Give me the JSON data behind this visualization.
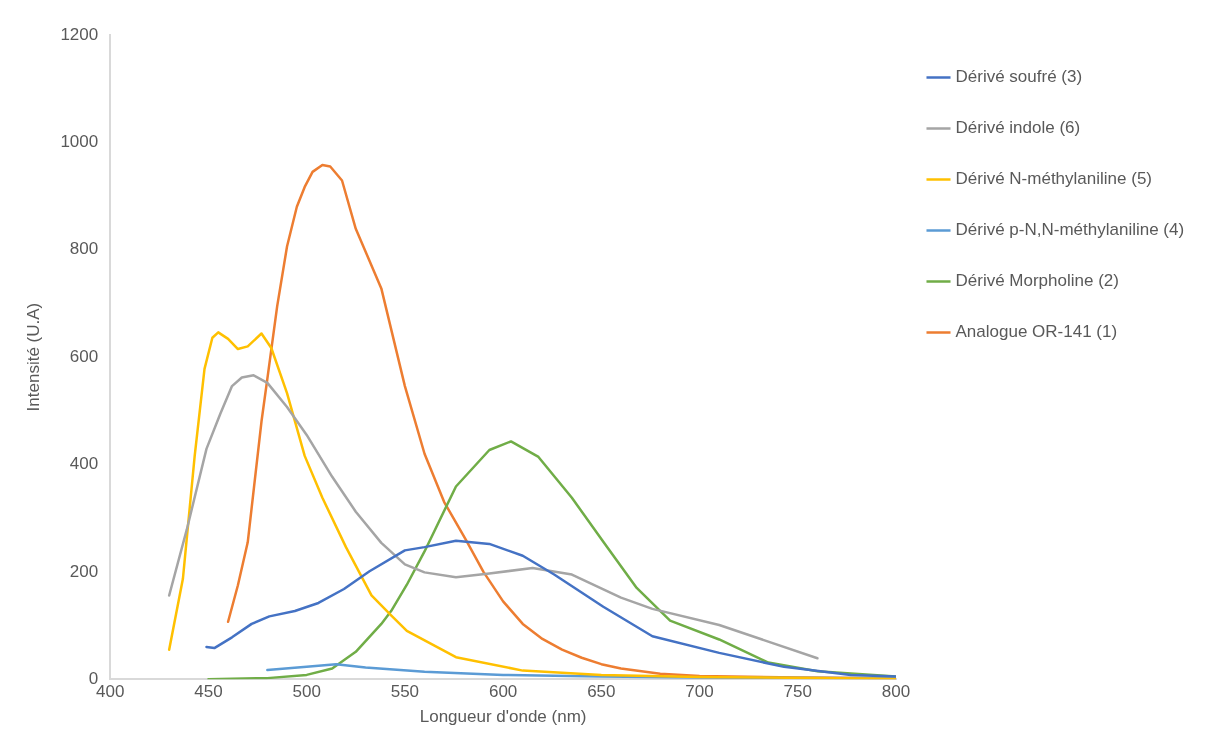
{
  "chart_data": {
    "type": "line",
    "xlabel": "Longueur d'onde (nm)",
    "ylabel": "Intensité (U.A)",
    "xlim": [
      400,
      800
    ],
    "xticks": [
      400,
      450,
      500,
      550,
      600,
      650,
      700,
      750,
      800
    ],
    "ylim": [
      0,
      1200
    ],
    "yticks": [
      0,
      200,
      400,
      600,
      800,
      1000,
      1200
    ],
    "grid": false,
    "legend": "right",
    "marker": "none",
    "line_style": "solid",
    "series": [
      {
        "name": "Dérivé soufré (3)",
        "color": "#4472c4",
        "x": [
          449,
          453,
          462,
          472,
          481,
          494,
          506,
          519,
          532,
          550,
          560,
          576,
          593,
          610,
          626,
          651,
          676,
          710,
          743,
          777,
          800
        ],
        "values": [
          60,
          58,
          78,
          103,
          117,
          127,
          142,
          168,
          201,
          240,
          246,
          258,
          252,
          230,
          195,
          135,
          80,
          49,
          23,
          8,
          5
        ]
      },
      {
        "name": "Dérivé indole (6)",
        "color": "#a5a5a5",
        "x": [
          430,
          439,
          449,
          456,
          462,
          467,
          473,
          480,
          490,
          500,
          513,
          525,
          538,
          550,
          560,
          576,
          593,
          615,
          635,
          660,
          676,
          710,
          760
        ],
        "values": [
          156,
          279,
          429,
          494,
          546,
          562,
          566,
          552,
          507,
          455,
          377,
          312,
          254,
          214,
          199,
          190,
          197,
          207,
          195,
          152,
          131,
          101,
          39
        ]
      },
      {
        "name": "Dérivé N-méthylaniline (5)",
        "color": "#ffc000",
        "x": [
          430,
          437,
          443,
          448,
          452,
          455,
          460,
          465,
          470,
          477,
          482,
          490,
          499,
          508,
          520,
          533,
          543,
          551,
          576,
          610,
          650,
          700,
          800
        ],
        "values": [
          55,
          187,
          416,
          578,
          636,
          646,
          634,
          615,
          620,
          644,
          617,
          533,
          416,
          338,
          246,
          156,
          119,
          90,
          41,
          16,
          8,
          4,
          1
        ]
      },
      {
        "name": "Dérivé p-N,N-méthylaniline (4)",
        "color": "#5b9bd5",
        "x": [
          480,
          500,
          515,
          530,
          560,
          600,
          650,
          700,
          800
        ],
        "values": [
          17,
          23,
          28,
          22,
          14,
          8,
          5,
          3,
          2
        ]
      },
      {
        "name": "Dérivé Morpholine (2)",
        "color": "#70ad47",
        "x": [
          450,
          480,
          500,
          513,
          525,
          538,
          543,
          551,
          560,
          576,
          593,
          604,
          618,
          635,
          651,
          668,
          685,
          710,
          735,
          760,
          800
        ],
        "values": [
          0,
          2,
          8,
          20,
          51,
          103,
          127,
          176,
          238,
          359,
          427,
          443,
          414,
          338,
          256,
          170,
          109,
          74,
          31,
          15,
          5
        ]
      },
      {
        "name": "Analogue OR-141 (1)",
        "color": "#ed7d31",
        "x": [
          460,
          465,
          470,
          477,
          480,
          485,
          490,
          495,
          499,
          503,
          508,
          512,
          518,
          525,
          538,
          550,
          560,
          570,
          581,
          590,
          600,
          610,
          620,
          630,
          640,
          650,
          660,
          680,
          700,
          750,
          800
        ],
        "values": [
          107,
          175,
          255,
          480,
          560,
          695,
          806,
          880,
          917,
          945,
          958,
          955,
          929,
          839,
          728,
          546,
          420,
          330,
          260,
          200,
          145,
          103,
          75,
          55,
          40,
          28,
          20,
          10,
          6,
          3,
          2
        ]
      }
    ]
  }
}
